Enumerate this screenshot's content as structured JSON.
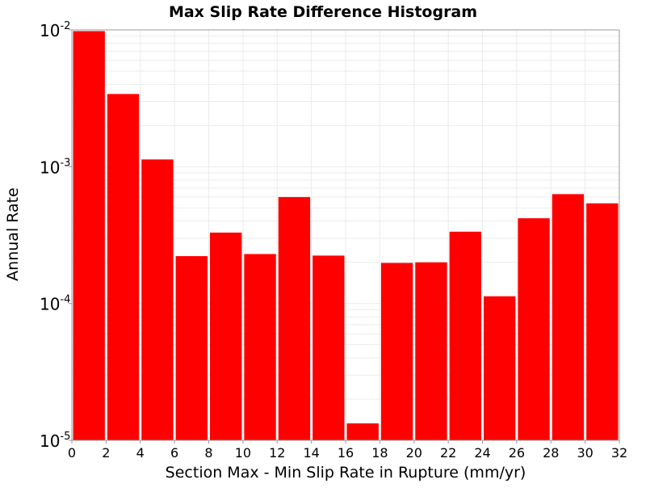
{
  "chart_data": {
    "type": "bar",
    "title": "Max Slip Rate Difference Histogram",
    "xlabel": "Section Max - Min Slip Rate in Rupture (mm/yr)",
    "ylabel": "Annual Rate",
    "yscale": "log",
    "xlim": [
      0,
      32
    ],
    "ylim": [
      1e-05,
      0.01
    ],
    "bin_width": 2,
    "x_ticks": [
      "0",
      "2",
      "4",
      "6",
      "8",
      "10",
      "12",
      "14",
      "16",
      "18",
      "20",
      "22",
      "24",
      "26",
      "28",
      "30",
      "32"
    ],
    "y_ticks": [
      {
        "base": "10",
        "exp": "-5"
      },
      {
        "base": "10",
        "exp": "-4"
      },
      {
        "base": "10",
        "exp": "-3"
      },
      {
        "base": "10",
        "exp": "-2"
      }
    ],
    "bins": [
      {
        "x_start": 0,
        "x_end": 2,
        "value": 0.0098
      },
      {
        "x_start": 2,
        "x_end": 4,
        "value": 0.0034
      },
      {
        "x_start": 4,
        "x_end": 6,
        "value": 0.00113
      },
      {
        "x_start": 6,
        "x_end": 8,
        "value": 0.000222
      },
      {
        "x_start": 8,
        "x_end": 10,
        "value": 0.00033
      },
      {
        "x_start": 10,
        "x_end": 12,
        "value": 0.00023
      },
      {
        "x_start": 12,
        "x_end": 14,
        "value": 0.0006
      },
      {
        "x_start": 14,
        "x_end": 16,
        "value": 0.000224
      },
      {
        "x_start": 16,
        "x_end": 18,
        "value": 1.33e-05
      },
      {
        "x_start": 18,
        "x_end": 20,
        "value": 0.000198
      },
      {
        "x_start": 20,
        "x_end": 22,
        "value": 0.0002
      },
      {
        "x_start": 22,
        "x_end": 24,
        "value": 0.000335
      },
      {
        "x_start": 24,
        "x_end": 26,
        "value": 0.000113
      },
      {
        "x_start": 26,
        "x_end": 28,
        "value": 0.00042
      },
      {
        "x_start": 28,
        "x_end": 30,
        "value": 0.00063
      },
      {
        "x_start": 30,
        "x_end": 32,
        "value": 0.00054
      }
    ],
    "bar_color": "#ff0000",
    "grid": true,
    "grid_color": "#ebebeb",
    "legend": "none"
  }
}
